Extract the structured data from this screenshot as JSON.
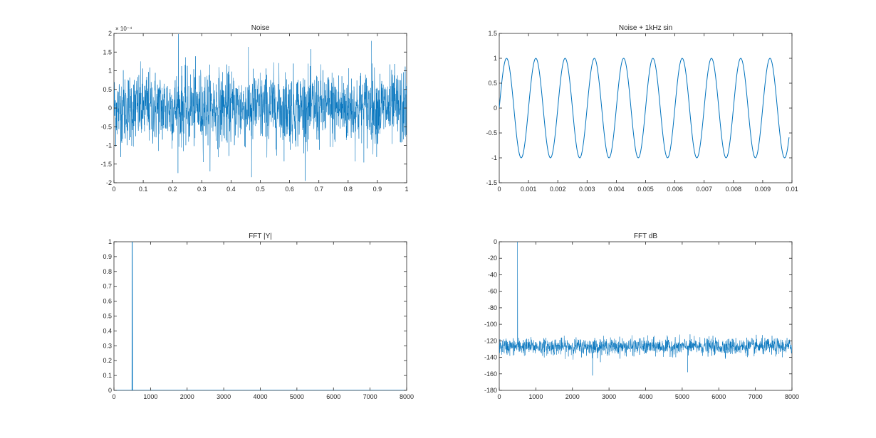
{
  "figure": {
    "background": "#ffffff",
    "line_color": "#0072BD",
    "axis_color": "#262626"
  },
  "chart_data": [
    {
      "type": "line",
      "title": "Noise",
      "xlabel": "",
      "ylabel": "",
      "xlim": [
        0,
        1
      ],
      "ylim": [
        -2,
        2
      ],
      "y_exponent": "× 10⁻⁴",
      "xticks": [
        0,
        0.1,
        0.2,
        0.3,
        0.4,
        0.5,
        0.6,
        0.7,
        0.8,
        0.9,
        1
      ],
      "xtick_labels": [
        "0",
        "0.1",
        "0.2",
        "0.3",
        "0.4",
        "0.5",
        "0.6",
        "0.7",
        "0.8",
        "0.9",
        "1"
      ],
      "yticks": [
        -2,
        -1.5,
        -1,
        -0.5,
        0,
        0.5,
        1,
        1.5,
        2
      ],
      "ytick_labels": [
        "-2",
        "-1.5",
        "-1",
        "-0.5",
        "0",
        "0.5",
        "1",
        "1.5",
        "2"
      ],
      "series": [
        {
          "kind": "noise",
          "mean": 0,
          "std": 0.5,
          "x_range": [
            0,
            1
          ],
          "samples": 1600,
          "peaks": [
            [
              0.22,
              1.98
            ],
            [
              0.47,
              -1.85
            ],
            [
              0.88,
              1.8
            ]
          ]
        }
      ]
    },
    {
      "type": "line",
      "title": "Noise + 1kHz sin",
      "xlabel": "",
      "ylabel": "",
      "xlim": [
        0,
        0.01
      ],
      "ylim": [
        -1.5,
        1.5
      ],
      "xticks": [
        0,
        0.001,
        0.002,
        0.003,
        0.004,
        0.005,
        0.006,
        0.007,
        0.008,
        0.009,
        0.01
      ],
      "xtick_labels": [
        "0",
        "0.001",
        "0.002",
        "0.003",
        "0.004",
        "0.005",
        "0.006",
        "0.007",
        "0.008",
        "0.009",
        "0.01"
      ],
      "yticks": [
        -1.5,
        -1,
        -0.5,
        0,
        0.5,
        1,
        1.5
      ],
      "ytick_labels": [
        "-1.5",
        "-1",
        "-0.5",
        "0",
        "0.5",
        "1",
        "1.5"
      ],
      "series": [
        {
          "kind": "sine",
          "amplitude": 1,
          "frequency_hz": 1000,
          "x_range": [
            0,
            0.0099
          ]
        }
      ]
    },
    {
      "type": "line",
      "title": "FFT |Y|",
      "xlabel": "",
      "ylabel": "",
      "xlim": [
        0,
        8000
      ],
      "ylim": [
        0,
        1
      ],
      "xticks": [
        0,
        1000,
        2000,
        3000,
        4000,
        5000,
        6000,
        7000,
        8000
      ],
      "xtick_labels": [
        "0",
        "1000",
        "2000",
        "3000",
        "4000",
        "5000",
        "6000",
        "7000",
        "8000"
      ],
      "yticks": [
        0,
        0.1,
        0.2,
        0.3,
        0.4,
        0.5,
        0.6,
        0.7,
        0.8,
        0.9,
        1
      ],
      "ytick_labels": [
        "0",
        "0.1",
        "0.2",
        "0.3",
        "0.4",
        "0.5",
        "0.6",
        "0.7",
        "0.8",
        "0.9",
        "1"
      ],
      "series": [
        {
          "kind": "spike",
          "spike_x": 500,
          "spike_y": 1,
          "baseline": 0.0,
          "x_range": [
            0,
            8000
          ]
        }
      ]
    },
    {
      "type": "line",
      "title": "FFT dB",
      "xlabel": "",
      "ylabel": "",
      "xlim": [
        0,
        8000
      ],
      "ylim": [
        -180,
        0
      ],
      "xticks": [
        0,
        1000,
        2000,
        3000,
        4000,
        5000,
        6000,
        7000,
        8000
      ],
      "xtick_labels": [
        "0",
        "1000",
        "2000",
        "3000",
        "4000",
        "5000",
        "6000",
        "7000",
        "8000"
      ],
      "yticks": [
        -180,
        -160,
        -140,
        -120,
        -100,
        -80,
        -60,
        -40,
        -20,
        0
      ],
      "ytick_labels": [
        "-180",
        "-160",
        "-140",
        "-120",
        "-100",
        "-80",
        "-60",
        "-40",
        "-20",
        "0"
      ],
      "series": [
        {
          "kind": "noise_floor",
          "mean": -127,
          "std": 5,
          "x_range": [
            0,
            8000
          ],
          "samples": 1600,
          "spike_x": 500,
          "spike_y": 0,
          "dips": [
            [
              2550,
              -162
            ],
            [
              5150,
              -158
            ]
          ]
        }
      ]
    }
  ]
}
